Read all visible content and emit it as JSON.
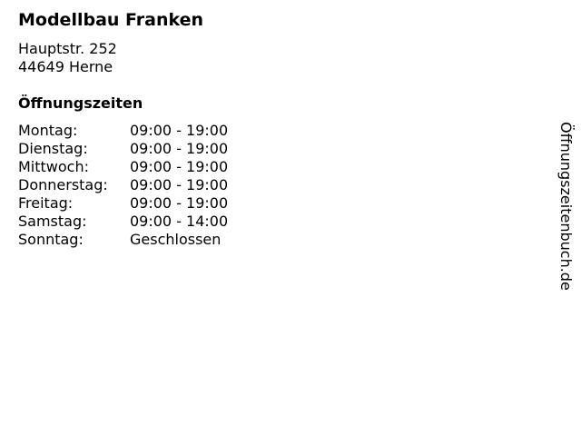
{
  "title": "Modellbau Franken",
  "address": {
    "street": "Hauptstr. 252",
    "city": "44649 Herne"
  },
  "hours_heading": "Öffnungszeiten",
  "hours": [
    {
      "day": "Montag:",
      "time": "09:00 - 19:00"
    },
    {
      "day": "Dienstag:",
      "time": "09:00 - 19:00"
    },
    {
      "day": "Mittwoch:",
      "time": "09:00 - 19:00"
    },
    {
      "day": "Donnerstag:",
      "time": "09:00 - 19:00"
    },
    {
      "day": "Freitag:",
      "time": "09:00 - 19:00"
    },
    {
      "day": "Samstag:",
      "time": "09:00 - 14:00"
    },
    {
      "day": "Sonntag:",
      "time": "Geschlossen"
    }
  ],
  "watermark": "Öffnungszeitenbuch.de"
}
